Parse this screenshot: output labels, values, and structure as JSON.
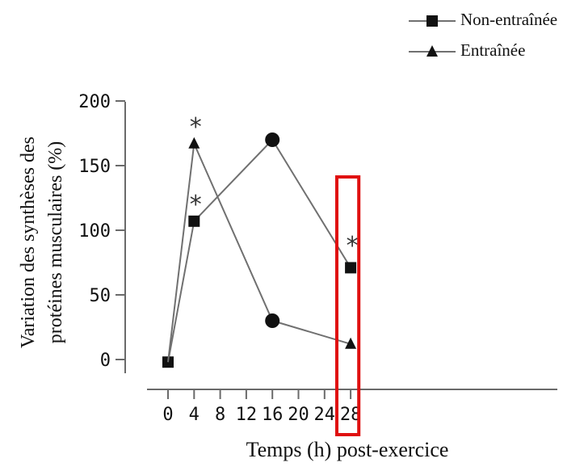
{
  "chart_data": {
    "type": "line",
    "title": "",
    "xlabel": "Temps (h) post-exercice",
    "ylabel": [
      "Variation des synthèses des",
      "protéines musculaires (%)"
    ],
    "xlim": [
      -4,
      30
    ],
    "ylim": [
      -10,
      200
    ],
    "x_ticks": [
      0,
      4,
      8,
      12,
      16,
      20,
      24,
      28
    ],
    "y_ticks": [
      0,
      50,
      100,
      150,
      200
    ],
    "grid": false,
    "legend_position": "top-right",
    "series": [
      {
        "name": "Non-entraînée",
        "marker": "square",
        "color": "#111111",
        "x": [
          0,
          4,
          16,
          28
        ],
        "y": [
          -2,
          107,
          170,
          71
        ]
      },
      {
        "name": "Entraînée",
        "marker": "triangle",
        "color": "#111111",
        "x": [
          0,
          4,
          16,
          28
        ],
        "y": [
          -2,
          167,
          30,
          12
        ]
      }
    ],
    "point_markers": [
      {
        "x": 16,
        "y": 170,
        "marker": "circle"
      },
      {
        "x": 16,
        "y": 30,
        "marker": "circle"
      }
    ],
    "annotations": [
      {
        "text": "*",
        "x": 4,
        "y": 190
      },
      {
        "text": "*",
        "x": 4,
        "y": 130
      },
      {
        "text": "*",
        "x": 28,
        "y": 98
      }
    ],
    "highlight": {
      "x_range": [
        26.5,
        29.5
      ],
      "color": "#e01010"
    }
  },
  "colors": {
    "axis": "#6a6a6a",
    "line": "#707070",
    "marker": "#111111",
    "highlight": "#e01010"
  }
}
